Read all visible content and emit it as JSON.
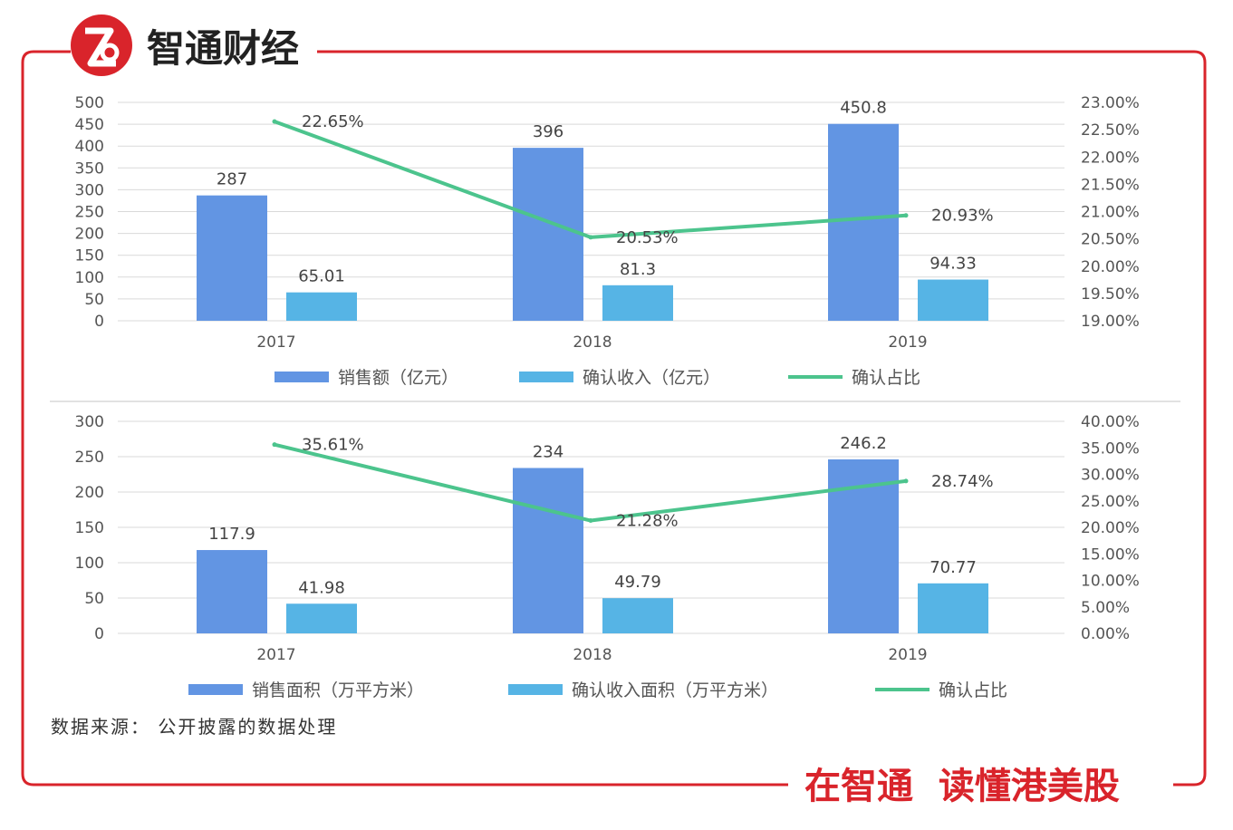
{
  "brand": {
    "name": "智通财经",
    "slogan": "在智通  读懂港美股",
    "logo_icon": "zhitong-logo-icon",
    "accent_color": "#d9242b"
  },
  "colors": {
    "bar_primary": "#6295e3",
    "bar_secondary": "#56b4e5",
    "line": "#4cc48d",
    "grid": "#d9d9d9",
    "frame": "#d9242b"
  },
  "source_note": "数据来源：  公开披露的数据处理",
  "chart_data": [
    {
      "type": "bar",
      "title": "",
      "categories": [
        "2017",
        "2018",
        "2019"
      ],
      "ylim": [
        0,
        500
      ],
      "y_ticks": [
        "0",
        "50",
        "100",
        "150",
        "200",
        "250",
        "300",
        "350",
        "400",
        "450",
        "500"
      ],
      "y2lim": [
        0.19,
        0.23
      ],
      "y2_ticks": [
        "19.00%",
        "19.50%",
        "20.00%",
        "20.50%",
        "21.00%",
        "21.50%",
        "22.00%",
        "22.50%",
        "23.00%"
      ],
      "grid": true,
      "legend": "bottom",
      "series": [
        {
          "name": "销售额（亿元）",
          "type": "bar",
          "values": [
            287,
            396,
            450.8
          ],
          "labels": [
            "287",
            "396",
            "450.8"
          ]
        },
        {
          "name": "确认收入（亿元）",
          "type": "bar",
          "values": [
            65.01,
            81.3,
            94.33
          ],
          "labels": [
            "65.01",
            "81.3",
            "94.33"
          ]
        },
        {
          "name": "确认占比",
          "type": "line",
          "axis": "right",
          "values": [
            0.2265,
            0.2053,
            0.2093
          ],
          "labels": [
            "22.65%",
            "20.53%",
            "20.93%"
          ]
        }
      ]
    },
    {
      "type": "bar",
      "title": "",
      "categories": [
        "2017",
        "2018",
        "2019"
      ],
      "ylim": [
        0,
        300
      ],
      "y_ticks": [
        "0",
        "50",
        "100",
        "150",
        "200",
        "250",
        "300"
      ],
      "y2lim": [
        0,
        0.4
      ],
      "y2_ticks": [
        "0.00%",
        "5.00%",
        "10.00%",
        "15.00%",
        "20.00%",
        "25.00%",
        "30.00%",
        "35.00%",
        "40.00%"
      ],
      "grid": true,
      "legend": "bottom",
      "series": [
        {
          "name": "销售面积（万平方米）",
          "type": "bar",
          "values": [
            117.9,
            234,
            246.2
          ],
          "labels": [
            "117.9",
            "234",
            "246.2"
          ]
        },
        {
          "name": "确认收入面积（万平方米）",
          "type": "bar",
          "values": [
            41.98,
            49.79,
            70.77
          ],
          "labels": [
            "41.98",
            "49.79",
            "70.77"
          ]
        },
        {
          "name": "确认占比",
          "type": "line",
          "axis": "right",
          "values": [
            0.3561,
            0.2128,
            0.2874
          ],
          "labels": [
            "35.61%",
            "21.28%",
            "28.74%"
          ]
        }
      ]
    }
  ]
}
